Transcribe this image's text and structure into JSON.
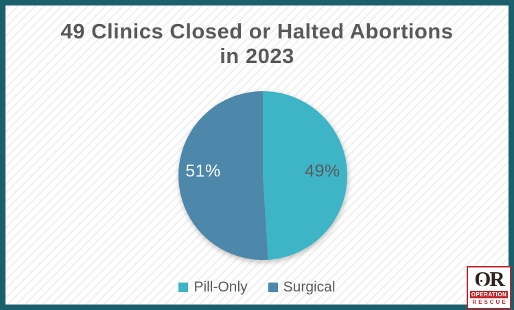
{
  "frame": {
    "border_color": "#1a5f6b",
    "stripe_color": "#f0f0f0",
    "background": "#ffffff"
  },
  "title": {
    "line1": "49 Clinics Closed or Halted Abortions",
    "line2": "in 2023",
    "color": "#595959"
  },
  "chart_data": {
    "type": "pie",
    "title": "49 Clinics Closed or Halted Abortions in 2023",
    "categories": [
      "Pill-Only",
      "Surgical"
    ],
    "values": [
      49,
      51
    ],
    "unit": "percent",
    "start_angle_deg": 0,
    "direction": "clockwise",
    "legend_position": "bottom",
    "slices": [
      {
        "label": "Pill-Only",
        "value": 49,
        "color": "#3db5c6",
        "data_label": "49%",
        "data_label_color": "#595959"
      },
      {
        "label": "Surgical",
        "value": 51,
        "color": "#4d87aa",
        "data_label": "51%",
        "data_label_color": "#ffffff"
      }
    ]
  },
  "legend": {
    "text_color": "#595959"
  },
  "logo": {
    "monogram": "OR",
    "line1": "OPERATION",
    "line2": "RESCUE",
    "red": "#c1272d",
    "dark": "#2e231d"
  }
}
